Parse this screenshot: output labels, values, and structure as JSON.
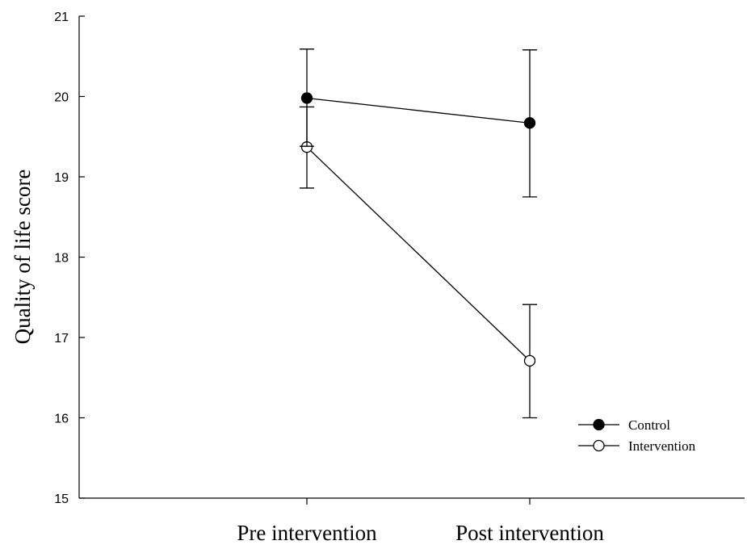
{
  "chart_data": {
    "type": "line",
    "title": "",
    "xlabel": "",
    "ylabel": "Quality of life score",
    "categories": [
      "Pre intervention",
      "Post intervention"
    ],
    "ylim": [
      15,
      21
    ],
    "yticks": [
      "15",
      "16",
      "17",
      "18",
      "19",
      "20",
      "21"
    ],
    "grid": false,
    "legend_position": "lower-right",
    "series": [
      {
        "name": "Control",
        "marker": "filled-circle",
        "color": "#000000",
        "values": [
          19.98,
          19.67
        ],
        "error_lower": [
          19.38,
          18.75
        ],
        "error_upper": [
          20.59,
          20.58
        ]
      },
      {
        "name": "Intervention",
        "marker": "open-circle",
        "color": "#000000",
        "values": [
          19.37,
          16.71
        ],
        "error_lower": [
          18.86,
          16.0
        ],
        "error_upper": [
          19.87,
          17.41
        ]
      }
    ]
  }
}
